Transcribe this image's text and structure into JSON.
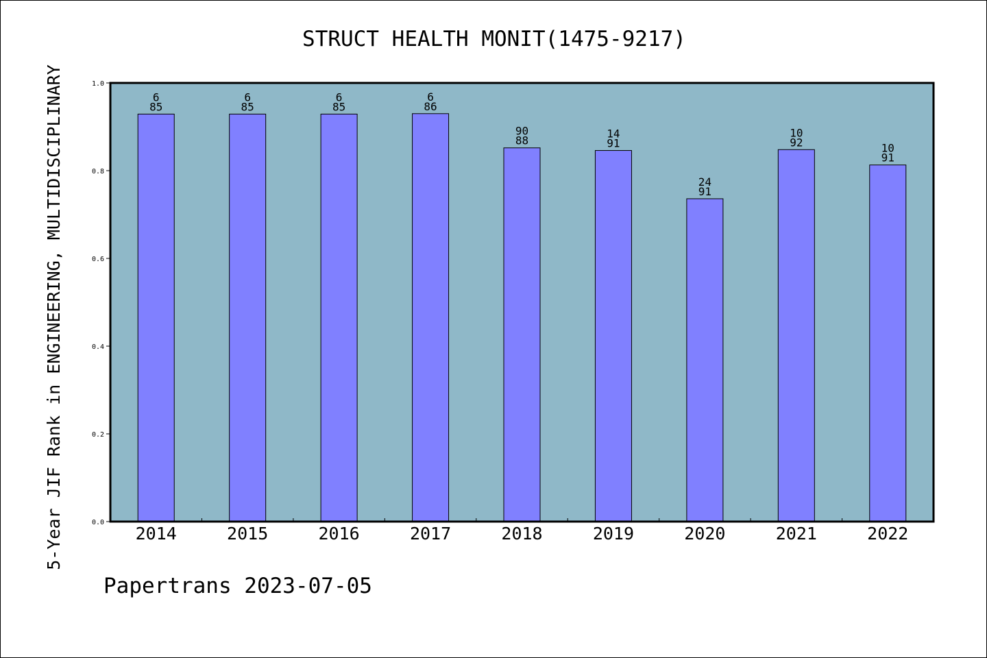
{
  "chart_data": {
    "type": "bar",
    "title": "STRUCT HEALTH MONIT(1475-9217)",
    "xlabel": "",
    "ylabel": "5-Year JIF Rank in ENGINEERING, MULTIDISCIPLINARY",
    "categories": [
      "2014",
      "2015",
      "2016",
      "2017",
      "2018",
      "2019",
      "2020",
      "2021",
      "2022"
    ],
    "values": [
      0.929,
      0.929,
      0.929,
      0.93,
      0.852,
      0.846,
      0.736,
      0.848,
      0.813
    ],
    "data_labels": [
      [
        "6",
        "85"
      ],
      [
        "6",
        "85"
      ],
      [
        "6",
        "85"
      ],
      [
        "6",
        "86"
      ],
      [
        "90",
        "88"
      ],
      [
        "14",
        "91"
      ],
      [
        "24",
        "91"
      ],
      [
        "10",
        "92"
      ],
      [
        "10",
        "91"
      ]
    ],
    "ylim": [
      0,
      1.0
    ],
    "yticks": [
      "0.0",
      "0.2",
      "0.4",
      "0.6",
      "0.8",
      "1.0"
    ],
    "grid": false,
    "colors": {
      "plot_background": "#8fb8c8",
      "bar_fill": "#8080ff",
      "bar_stroke": "#000000"
    }
  },
  "footer": "Papertrans 2023-07-05"
}
